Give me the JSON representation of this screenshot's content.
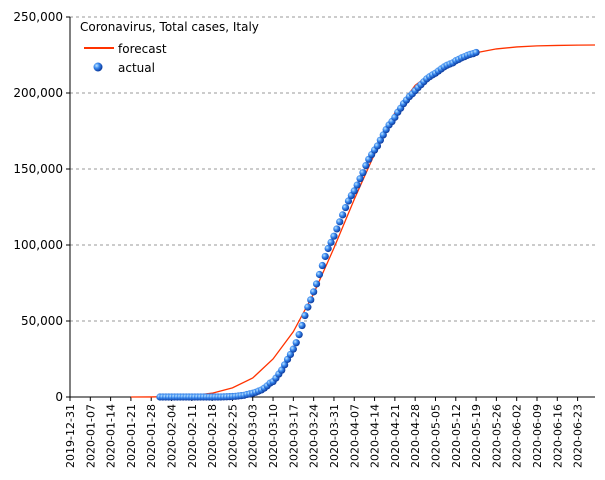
{
  "chart_data": {
    "type": "line",
    "title": "Coronavirus, Total cases, Italy",
    "xlabel": "",
    "ylabel": "",
    "x_start": "2019-12-31",
    "x_end": "2020-06-29",
    "ylim": [
      0,
      250000
    ],
    "yticks": [
      0,
      50000,
      100000,
      150000,
      200000,
      250000
    ],
    "ytick_labels": [
      "0",
      "50,000",
      "100,000",
      "150,000",
      "200,000",
      "250,000"
    ],
    "xtick_labels": [
      "2019-12-31",
      "2020-01-07",
      "2020-01-14",
      "2020-01-21",
      "2020-01-28",
      "2020-02-04",
      "2020-02-11",
      "2020-02-18",
      "2020-02-25",
      "2020-03-03",
      "2020-03-10",
      "2020-03-17",
      "2020-03-24",
      "2020-03-31",
      "2020-04-07",
      "2020-04-14",
      "2020-04-21",
      "2020-04-28",
      "2020-05-05",
      "2020-05-12",
      "2020-05-19",
      "2020-05-26",
      "2020-06-02",
      "2020-06-09",
      "2020-06-16",
      "2020-06-23"
    ],
    "grid": "horizontal dashed",
    "legend_position": "top-left",
    "colors": {
      "forecast": "#ff3300",
      "actual": "#1a5fd6",
      "actual_highlight": "#9fd3ff",
      "grid": "#999999"
    },
    "series": [
      {
        "name": "forecast",
        "style": "line",
        "points": [
          [
            "2020-01-21",
            0
          ],
          [
            "2020-01-28",
            50
          ],
          [
            "2020-02-04",
            300
          ],
          [
            "2020-02-11",
            900
          ],
          [
            "2020-02-18",
            2500
          ],
          [
            "2020-02-25",
            6000
          ],
          [
            "2020-03-03",
            12500
          ],
          [
            "2020-03-10",
            25000
          ],
          [
            "2020-03-17",
            43000
          ],
          [
            "2020-03-24",
            68000
          ],
          [
            "2020-03-31",
            98000
          ],
          [
            "2020-04-07",
            130000
          ],
          [
            "2020-04-14",
            160000
          ],
          [
            "2020-04-21",
            187000
          ],
          [
            "2020-04-28",
            205000
          ],
          [
            "2020-05-05",
            215000
          ],
          [
            "2020-05-12",
            222000
          ],
          [
            "2020-05-19",
            226500
          ],
          [
            "2020-05-26",
            229000
          ],
          [
            "2020-06-02",
            230300
          ],
          [
            "2020-06-09",
            231000
          ],
          [
            "2020-06-16",
            231300
          ],
          [
            "2020-06-23",
            231500
          ],
          [
            "2020-06-29",
            231600
          ]
        ]
      },
      {
        "name": "actual",
        "style": "markers",
        "points": [
          [
            "2020-01-31",
            2
          ],
          [
            "2020-02-01",
            2
          ],
          [
            "2020-02-02",
            2
          ],
          [
            "2020-02-03",
            2
          ],
          [
            "2020-02-04",
            2
          ],
          [
            "2020-02-05",
            2
          ],
          [
            "2020-02-06",
            3
          ],
          [
            "2020-02-07",
            3
          ],
          [
            "2020-02-08",
            3
          ],
          [
            "2020-02-09",
            3
          ],
          [
            "2020-02-10",
            3
          ],
          [
            "2020-02-11",
            3
          ],
          [
            "2020-02-12",
            3
          ],
          [
            "2020-02-13",
            3
          ],
          [
            "2020-02-14",
            3
          ],
          [
            "2020-02-15",
            3
          ],
          [
            "2020-02-16",
            3
          ],
          [
            "2020-02-17",
            3
          ],
          [
            "2020-02-18",
            3
          ],
          [
            "2020-02-19",
            3
          ],
          [
            "2020-02-20",
            3
          ],
          [
            "2020-02-21",
            20
          ],
          [
            "2020-02-22",
            79
          ],
          [
            "2020-02-23",
            152
          ],
          [
            "2020-02-24",
            229
          ],
          [
            "2020-02-25",
            322
          ],
          [
            "2020-02-26",
            453
          ],
          [
            "2020-02-27",
            655
          ],
          [
            "2020-02-28",
            888
          ],
          [
            "2020-02-29",
            1128
          ],
          [
            "2020-03-01",
            1694
          ],
          [
            "2020-03-02",
            2036
          ],
          [
            "2020-03-03",
            2502
          ],
          [
            "2020-03-04",
            3089
          ],
          [
            "2020-03-05",
            3858
          ],
          [
            "2020-03-06",
            4636
          ],
          [
            "2020-03-07",
            5883
          ],
          [
            "2020-03-08",
            7375
          ],
          [
            "2020-03-09",
            9172
          ],
          [
            "2020-03-10",
            10149
          ],
          [
            "2020-03-11",
            12462
          ],
          [
            "2020-03-12",
            15113
          ],
          [
            "2020-03-13",
            17660
          ],
          [
            "2020-03-14",
            21157
          ],
          [
            "2020-03-15",
            24747
          ],
          [
            "2020-03-16",
            27980
          ],
          [
            "2020-03-17",
            31506
          ],
          [
            "2020-03-18",
            35713
          ],
          [
            "2020-03-19",
            41035
          ],
          [
            "2020-03-20",
            47021
          ],
          [
            "2020-03-21",
            53578
          ],
          [
            "2020-03-22",
            59138
          ],
          [
            "2020-03-23",
            63927
          ],
          [
            "2020-03-24",
            69176
          ],
          [
            "2020-03-25",
            74386
          ],
          [
            "2020-03-26",
            80589
          ],
          [
            "2020-03-27",
            86498
          ],
          [
            "2020-03-28",
            92472
          ],
          [
            "2020-03-29",
            97689
          ],
          [
            "2020-03-30",
            101739
          ],
          [
            "2020-03-31",
            105792
          ],
          [
            "2020-04-01",
            110574
          ],
          [
            "2020-04-02",
            115242
          ],
          [
            "2020-04-03",
            119827
          ],
          [
            "2020-04-04",
            124632
          ],
          [
            "2020-04-05",
            128948
          ],
          [
            "2020-04-06",
            132547
          ],
          [
            "2020-04-07",
            135586
          ],
          [
            "2020-04-08",
            139422
          ],
          [
            "2020-04-09",
            143626
          ],
          [
            "2020-04-10",
            147577
          ],
          [
            "2020-04-11",
            152271
          ],
          [
            "2020-04-12",
            156363
          ],
          [
            "2020-04-13",
            159516
          ],
          [
            "2020-04-14",
            162488
          ],
          [
            "2020-04-15",
            165155
          ],
          [
            "2020-04-16",
            168941
          ],
          [
            "2020-04-17",
            172434
          ],
          [
            "2020-04-18",
            175925
          ],
          [
            "2020-04-19",
            178972
          ],
          [
            "2020-04-20",
            181228
          ],
          [
            "2020-04-21",
            183957
          ],
          [
            "2020-04-22",
            187327
          ],
          [
            "2020-04-23",
            189973
          ],
          [
            "2020-04-24",
            192994
          ],
          [
            "2020-04-25",
            195351
          ],
          [
            "2020-04-26",
            197675
          ],
          [
            "2020-04-27",
            199414
          ],
          [
            "2020-04-28",
            201505
          ],
          [
            "2020-04-29",
            203591
          ],
          [
            "2020-04-30",
            205463
          ],
          [
            "2020-05-01",
            207428
          ],
          [
            "2020-05-02",
            209328
          ],
          [
            "2020-05-03",
            210717
          ],
          [
            "2020-05-04",
            211938
          ],
          [
            "2020-05-05",
            213013
          ],
          [
            "2020-05-06",
            214457
          ],
          [
            "2020-05-07",
            215858
          ],
          [
            "2020-05-08",
            217185
          ],
          [
            "2020-05-09",
            218268
          ],
          [
            "2020-05-10",
            219070
          ],
          [
            "2020-05-11",
            219814
          ],
          [
            "2020-05-12",
            221216
          ],
          [
            "2020-05-13",
            222104
          ],
          [
            "2020-05-14",
            223096
          ],
          [
            "2020-05-15",
            223885
          ],
          [
            "2020-05-16",
            224760
          ],
          [
            "2020-05-17",
            225435
          ],
          [
            "2020-05-18",
            225886
          ],
          [
            "2020-05-19",
            226699
          ]
        ]
      }
    ]
  }
}
